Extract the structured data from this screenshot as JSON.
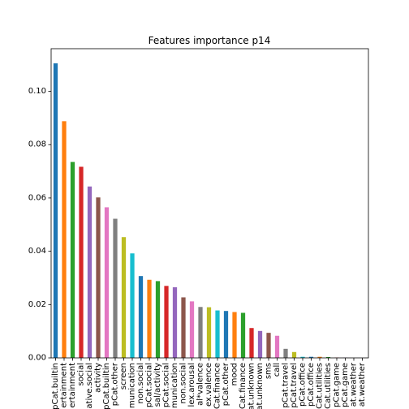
{
  "chart_data": {
    "type": "bar",
    "title": "Features importance p14",
    "xlabel": "",
    "ylabel": "",
    "ylim": [
      0,
      0.116
    ],
    "yticks": [
      0.0,
      0.02,
      0.04,
      0.06,
      0.08,
      0.1
    ],
    "ytick_labels": [
      "0.00",
      "0.02",
      "0.04",
      "0.06",
      "0.08",
      "0.10"
    ],
    "grid": false,
    "legend": false,
    "categories": [
      "pCat.builtin",
      "ertainment",
      "ertainment",
      "social",
      "ative.social",
      "activity",
      "pCat.builtin",
      "pCat.other",
      "screen",
      "munication",
      "non.social",
      "pCat.social",
      "sal/activity",
      "pCat.social",
      "munication",
      "non.social",
      "lex.arousal",
      "al*valence",
      "ex.valence",
      "Cat.finance",
      "pCat.other",
      "mood",
      "Cat.finance",
      "at.unknown",
      "at.unknown",
      "sms",
      "call",
      "pCat.travel",
      "pCat.travel",
      "pCat.office",
      "pCat.office",
      "Cat.utilities",
      "Cat.utilities",
      "pCat.game",
      "pCat.game",
      "at.weather",
      "at.weather"
    ],
    "values": [
      0.1105,
      0.0888,
      0.0735,
      0.0717,
      0.0643,
      0.0602,
      0.0565,
      0.0522,
      0.0453,
      0.0392,
      0.0307,
      0.0293,
      0.0288,
      0.027,
      0.0265,
      0.0227,
      0.0212,
      0.0191,
      0.019,
      0.0178,
      0.0176,
      0.0172,
      0.0169,
      0.0112,
      0.0101,
      0.0094,
      0.0083,
      0.0034,
      0.0022,
      0.0004,
      0.0004,
      0.0004,
      0.0003,
      0.0001,
      0.0001,
      0.0,
      0.0
    ],
    "colors": [
      "#1f77b4",
      "#ff7f0e",
      "#2ca02c",
      "#d62728",
      "#9467bd",
      "#8c564b",
      "#e377c2",
      "#7f7f7f",
      "#bcbd22",
      "#17becf"
    ]
  }
}
